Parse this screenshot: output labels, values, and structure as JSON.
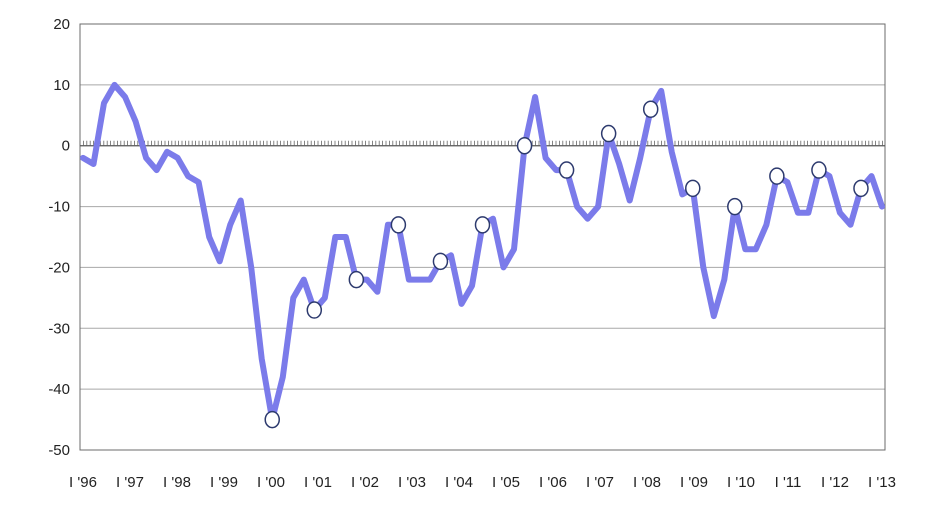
{
  "chart_data": {
    "type": "line",
    "title": "",
    "xlabel": "",
    "ylabel": "",
    "ylim": [
      -50,
      20
    ],
    "yticks": [
      20,
      10,
      0,
      -10,
      -20,
      -30,
      -40,
      -50
    ],
    "ytick_labels": [
      "20",
      "10",
      "0",
      "-10",
      "-20",
      "-30",
      "-40",
      "-50"
    ],
    "xtick_labels": [
      "I '96",
      "I '97",
      "I '98",
      "I '99",
      "I '00",
      "I '01",
      "I '02",
      "I '03",
      "I '04",
      "I '05",
      "I '06",
      "I '07",
      "I '08",
      "I '09",
      "I '10",
      "I '11",
      "I '12",
      "I '13"
    ],
    "grid": true,
    "legend": "none",
    "line_color": "#7b7bea",
    "marker_fill": "#ffffff",
    "marker_stroke": "#2d3a6e",
    "zero_line_color": "#555555",
    "series": [
      {
        "values": [
          -2,
          -3,
          7,
          10,
          8,
          4,
          -2,
          -4,
          -1,
          -2,
          -5,
          -6,
          -15,
          -19,
          -13,
          -9,
          -20,
          -35,
          -45,
          -38,
          -25,
          -22,
          -27,
          -25,
          -15,
          -15,
          -22,
          -22,
          -24,
          -13,
          -13,
          -22,
          -22,
          -22,
          -19,
          -18,
          -26,
          -23,
          -13,
          -12,
          -20,
          -17,
          0,
          8,
          -2,
          -4,
          -4,
          -10,
          -12,
          -10,
          2,
          -3,
          -9,
          -2,
          6,
          9,
          -1,
          -8,
          -7,
          -20,
          -28,
          -22,
          -10,
          -17,
          -17,
          -13,
          -5,
          -6,
          -11,
          -11,
          -4,
          -5,
          -11,
          -13,
          -7,
          -5,
          -10
        ],
        "marker_indices": [
          18,
          22,
          26,
          30,
          34,
          38,
          42,
          46,
          50,
          54,
          58,
          62,
          66,
          70,
          74,
          78,
          82,
          86,
          90,
          94,
          98,
          102,
          106,
          110,
          114,
          118,
          122,
          126,
          130,
          134,
          138,
          142,
          146,
          150,
          154,
          158,
          162,
          166,
          170,
          174
        ]
      }
    ]
  }
}
